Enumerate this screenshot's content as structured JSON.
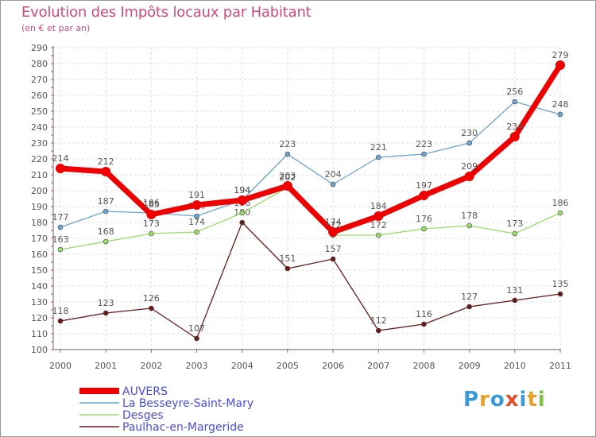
{
  "chart_data": {
    "type": "line",
    "title": "Evolution des Impôts locaux par Habitant",
    "subtitle": "(en € et par an)",
    "x": [
      "2000",
      "2001",
      "2002",
      "2003",
      "2004",
      "2005",
      "2006",
      "2007",
      "2008",
      "2009",
      "2010",
      "2011"
    ],
    "ylim": [
      100,
      290
    ],
    "yticks": [
      100,
      110,
      120,
      130,
      140,
      150,
      160,
      170,
      180,
      190,
      200,
      210,
      220,
      230,
      240,
      250,
      260,
      270,
      280,
      290
    ],
    "grid": true,
    "series": [
      {
        "name": "Paulhac-en-Margeride",
        "color": "#6b1a1a",
        "values": [
          118,
          123,
          126,
          107,
          180,
          151,
          157,
          112,
          116,
          127,
          131,
          135
        ]
      },
      {
        "name": "Desges",
        "color": "#99dd66",
        "values": [
          163,
          168,
          173,
          174,
          186,
          202,
          172,
          172,
          176,
          178,
          173,
          186
        ]
      },
      {
        "name": "La Besseyre-Saint-Mary",
        "color": "#6aa5d2",
        "values": [
          177,
          187,
          186,
          184,
          194,
          223,
          204,
          221,
          223,
          230,
          256,
          248
        ]
      },
      {
        "name": "AUVERS",
        "color": "#ee0000",
        "values": [
          214,
          212,
          185,
          191,
          194,
          203,
          174,
          184,
          197,
          209,
          234,
          279
        ]
      }
    ],
    "legend": [
      "AUVERS",
      "La Besseyre-Saint-Mary",
      "Desges",
      "Paulhac-en-Margeride"
    ]
  },
  "logo": {
    "letters": [
      "P",
      "r",
      "o",
      "x",
      "i",
      "t",
      "i"
    ],
    "colors": [
      "#3a9ad9",
      "#e8a02a",
      "#3a9ad9",
      "#e34d2a",
      "#3a9ad9",
      "#e8a02a",
      "#7cc242"
    ]
  }
}
